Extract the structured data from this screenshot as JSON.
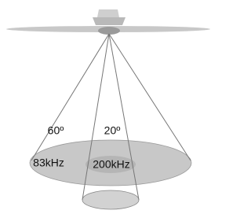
{
  "beams": [
    {
      "angle": "60º",
      "frequency": "83kHz"
    },
    {
      "angle": "20º",
      "frequency": "200kHz"
    }
  ]
}
